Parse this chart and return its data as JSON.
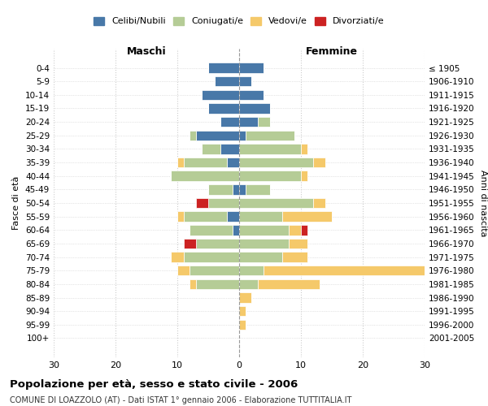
{
  "age_groups": [
    "0-4",
    "5-9",
    "10-14",
    "15-19",
    "20-24",
    "25-29",
    "30-34",
    "35-39",
    "40-44",
    "45-49",
    "50-54",
    "55-59",
    "60-64",
    "65-69",
    "70-74",
    "75-79",
    "80-84",
    "85-89",
    "90-94",
    "95-99",
    "100+"
  ],
  "birth_years": [
    "2001-2005",
    "1996-2000",
    "1991-1995",
    "1986-1990",
    "1981-1985",
    "1976-1980",
    "1971-1975",
    "1966-1970",
    "1961-1965",
    "1956-1960",
    "1951-1955",
    "1946-1950",
    "1941-1945",
    "1936-1940",
    "1931-1935",
    "1926-1930",
    "1921-1925",
    "1916-1920",
    "1911-1915",
    "1906-1910",
    "≤ 1905"
  ],
  "colors": {
    "celibi": "#4878a8",
    "coniugati": "#b5cc96",
    "vedovi": "#f5c96a",
    "divorziati": "#cc2222"
  },
  "male": {
    "celibi": [
      5,
      4,
      6,
      5,
      3,
      7,
      3,
      2,
      0,
      1,
      0,
      2,
      1,
      0,
      0,
      0,
      0,
      0,
      0,
      0,
      0
    ],
    "coniugati": [
      0,
      0,
      0,
      0,
      0,
      1,
      3,
      7,
      11,
      4,
      5,
      7,
      7,
      7,
      9,
      8,
      7,
      0,
      0,
      0,
      0
    ],
    "vedovi": [
      0,
      0,
      0,
      0,
      0,
      0,
      0,
      1,
      0,
      0,
      0,
      1,
      0,
      0,
      2,
      2,
      1,
      0,
      0,
      0,
      0
    ],
    "divorziati": [
      0,
      0,
      0,
      0,
      0,
      0,
      0,
      0,
      0,
      0,
      2,
      0,
      0,
      2,
      0,
      0,
      0,
      0,
      0,
      0,
      0
    ]
  },
  "female": {
    "nubili": [
      4,
      2,
      4,
      5,
      3,
      1,
      0,
      0,
      0,
      1,
      0,
      0,
      0,
      0,
      0,
      0,
      0,
      0,
      0,
      0,
      0
    ],
    "coniugate": [
      0,
      0,
      0,
      0,
      2,
      8,
      10,
      12,
      10,
      4,
      12,
      7,
      8,
      8,
      7,
      4,
      3,
      0,
      0,
      0,
      0
    ],
    "vedove": [
      0,
      0,
      0,
      0,
      0,
      0,
      1,
      2,
      1,
      0,
      2,
      8,
      2,
      3,
      4,
      26,
      10,
      2,
      1,
      1,
      0
    ],
    "divorziate": [
      0,
      0,
      0,
      0,
      0,
      0,
      0,
      0,
      0,
      0,
      0,
      0,
      1,
      0,
      0,
      0,
      0,
      0,
      0,
      0,
      0
    ]
  },
  "xlim": 30,
  "title": "Popolazione per età, sesso e stato civile - 2006",
  "subtitle": "COMUNE DI LOAZZOLO (AT) - Dati ISTAT 1° gennaio 2006 - Elaborazione TUTTITALIA.IT",
  "ylabel_left": "Fasce di età",
  "ylabel_right": "Anni di nascita",
  "xlabel_left": "Maschi",
  "xlabel_right": "Femmine",
  "legend_labels": [
    "Celibi/Nubili",
    "Coniugati/e",
    "Vedovi/e",
    "Divorziati/e"
  ],
  "background": "#ffffff",
  "grid_color": "#cccccc"
}
